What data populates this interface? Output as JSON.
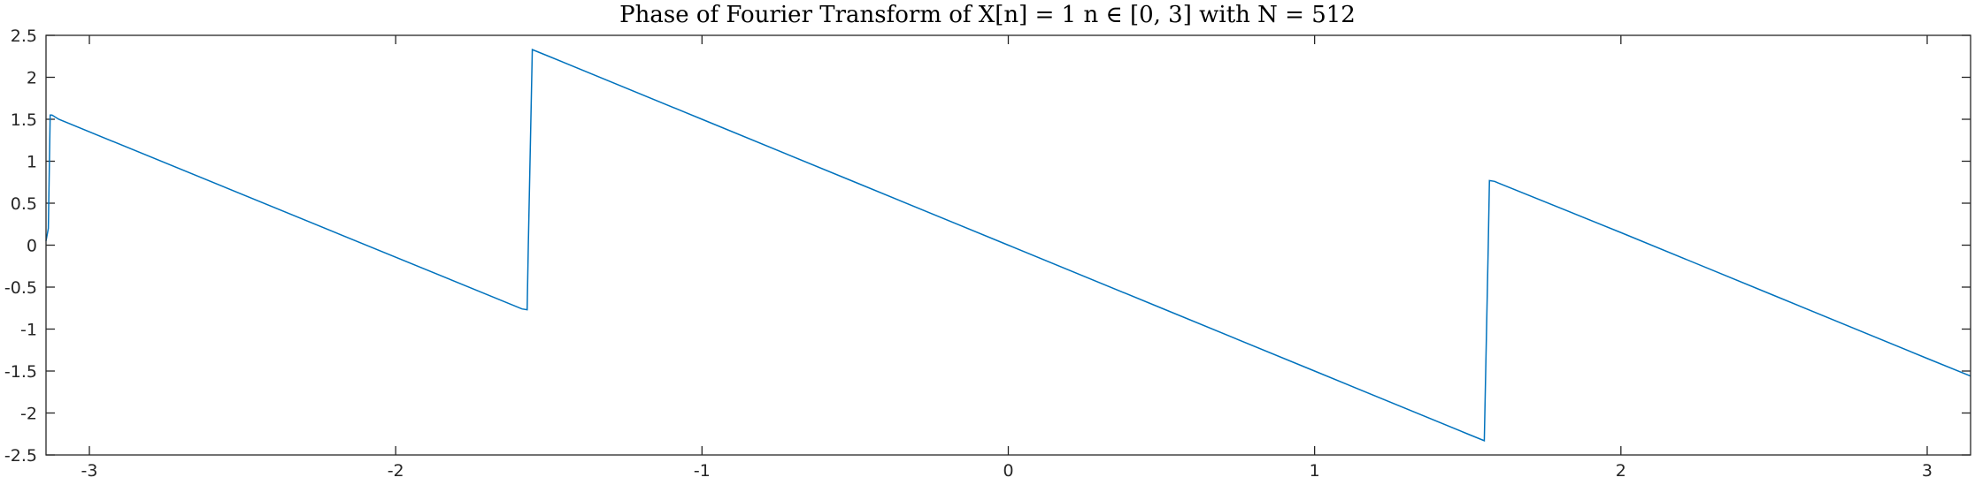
{
  "chart_data": {
    "type": "line",
    "title": "Phase of Fourier Transform of X[n] = 1  n ∈ [0, 3] with N =  512",
    "xlabel": "",
    "ylabel": "",
    "xlim": [
      -3.1416,
      3.1416
    ],
    "ylim": [
      -2.5,
      2.5
    ],
    "xticks": [
      "-3",
      "-2",
      "-1",
      "0",
      "1",
      "2",
      "3"
    ],
    "yticks": [
      "2.5",
      "2",
      "1.5",
      "1",
      "0.5",
      "0",
      "-0.5",
      "-1",
      "-1.5",
      "-2",
      "-2.5"
    ],
    "grid": false,
    "line_color": "#0072BD",
    "series": [
      {
        "x": [
          -3.1416,
          -3.134,
          -3.128,
          -3.122,
          -3.1,
          -1.5875,
          -1.5708,
          -1.567,
          -1.554,
          -1.5,
          -1.0,
          -0.5,
          0.0,
          0.5,
          1.0,
          1.5,
          1.554,
          1.567,
          1.5708,
          1.5875,
          1.6,
          2.0,
          2.5,
          3.0,
          3.1416
        ],
        "y": [
          0.05,
          0.2,
          1.55,
          1.55,
          1.5,
          -0.76,
          -0.77,
          0.0,
          2.33,
          2.25,
          1.5,
          0.75,
          0.0,
          -0.75,
          -1.5,
          -2.25,
          -2.33,
          0.0,
          0.77,
          0.76,
          0.74,
          0.15,
          -0.6,
          -1.35,
          -1.56
        ]
      }
    ]
  }
}
